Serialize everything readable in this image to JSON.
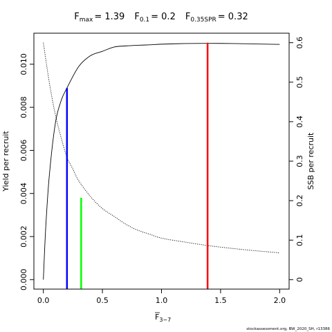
{
  "chart_data": {
    "type": "line",
    "title": {
      "fmax_label": "F",
      "fmax_sub": "max",
      "fmax_value": "= 1.39",
      "f01_label": "F",
      "f01_sub": "0.1",
      "f01_value": "= 0.2",
      "fspr_label": "F",
      "fspr_sub": "0.35SPR",
      "fspr_value": "= 0.32"
    },
    "xlabel": {
      "main": "F",
      "sub": "3−7"
    },
    "ylabel_left": "Yield per recruit",
    "ylabel_right": "SSB per recruit",
    "xlim": [
      -0.08,
      2.08
    ],
    "ylim_left": [
      -0.00044,
      0.01144
    ],
    "ylim_right": [
      -0.024,
      0.624
    ],
    "x_ticks": [
      0,
      0.5,
      1,
      1.5,
      2
    ],
    "x_tick_labels": [
      "0.0",
      "0.5",
      "1.0",
      "1.5",
      "2.0"
    ],
    "y_left_ticks": [
      0,
      0.002,
      0.004,
      0.006,
      0.008,
      0.01
    ],
    "y_left_tick_labels": [
      "0.000",
      "0.002",
      "0.004",
      "0.006",
      "0.008",
      "0.010"
    ],
    "y_right_ticks": [
      0,
      0.1,
      0.2,
      0.3,
      0.4,
      0.5,
      0.6
    ],
    "y_right_tick_labels": [
      "0",
      "0.1",
      "0.2",
      "0.3",
      "0.4",
      "0.5",
      "0.6"
    ],
    "series": [
      {
        "axis": "left",
        "style": "solid",
        "x": [
          0,
          0.02,
          0.05,
          0.1,
          0.15,
          0.2,
          0.3,
          0.4,
          0.5,
          0.6,
          0.7,
          0.8,
          0.9,
          1.0,
          1.2,
          1.39,
          1.6,
          1.8,
          2.0
        ],
        "y": [
          0,
          0.0024,
          0.0048,
          0.0072,
          0.0083,
          0.0089,
          0.0099,
          0.0104,
          0.0106,
          0.0108,
          0.01085,
          0.01088,
          0.0109,
          0.01093,
          0.01096,
          0.01097,
          0.01096,
          0.01094,
          0.01092
        ]
      },
      {
        "axis": "right",
        "style": "dotted",
        "x": [
          0,
          0.05,
          0.1,
          0.15,
          0.2,
          0.25,
          0.3,
          0.4,
          0.5,
          0.6,
          0.7,
          0.8,
          0.9,
          1.0,
          1.2,
          1.4,
          1.6,
          1.8,
          2.0
        ],
        "y": [
          0.6,
          0.5,
          0.42,
          0.36,
          0.31,
          0.28,
          0.25,
          0.21,
          0.18,
          0.16,
          0.14,
          0.125,
          0.115,
          0.105,
          0.095,
          0.086,
          0.079,
          0.073,
          0.068
        ]
      }
    ],
    "reference_lines": [
      {
        "x": 0.2,
        "y_top": 0.0089,
        "color": "#0000ff"
      },
      {
        "x": 0.32,
        "y_top": 0.0038,
        "color": "#00ff00"
      },
      {
        "x": 1.39,
        "y_top": 0.011,
        "color": "#ff0000"
      }
    ],
    "grid": false,
    "legend": "none"
  },
  "footer": "stockassessment.org, BW_2020_SH, r13386"
}
